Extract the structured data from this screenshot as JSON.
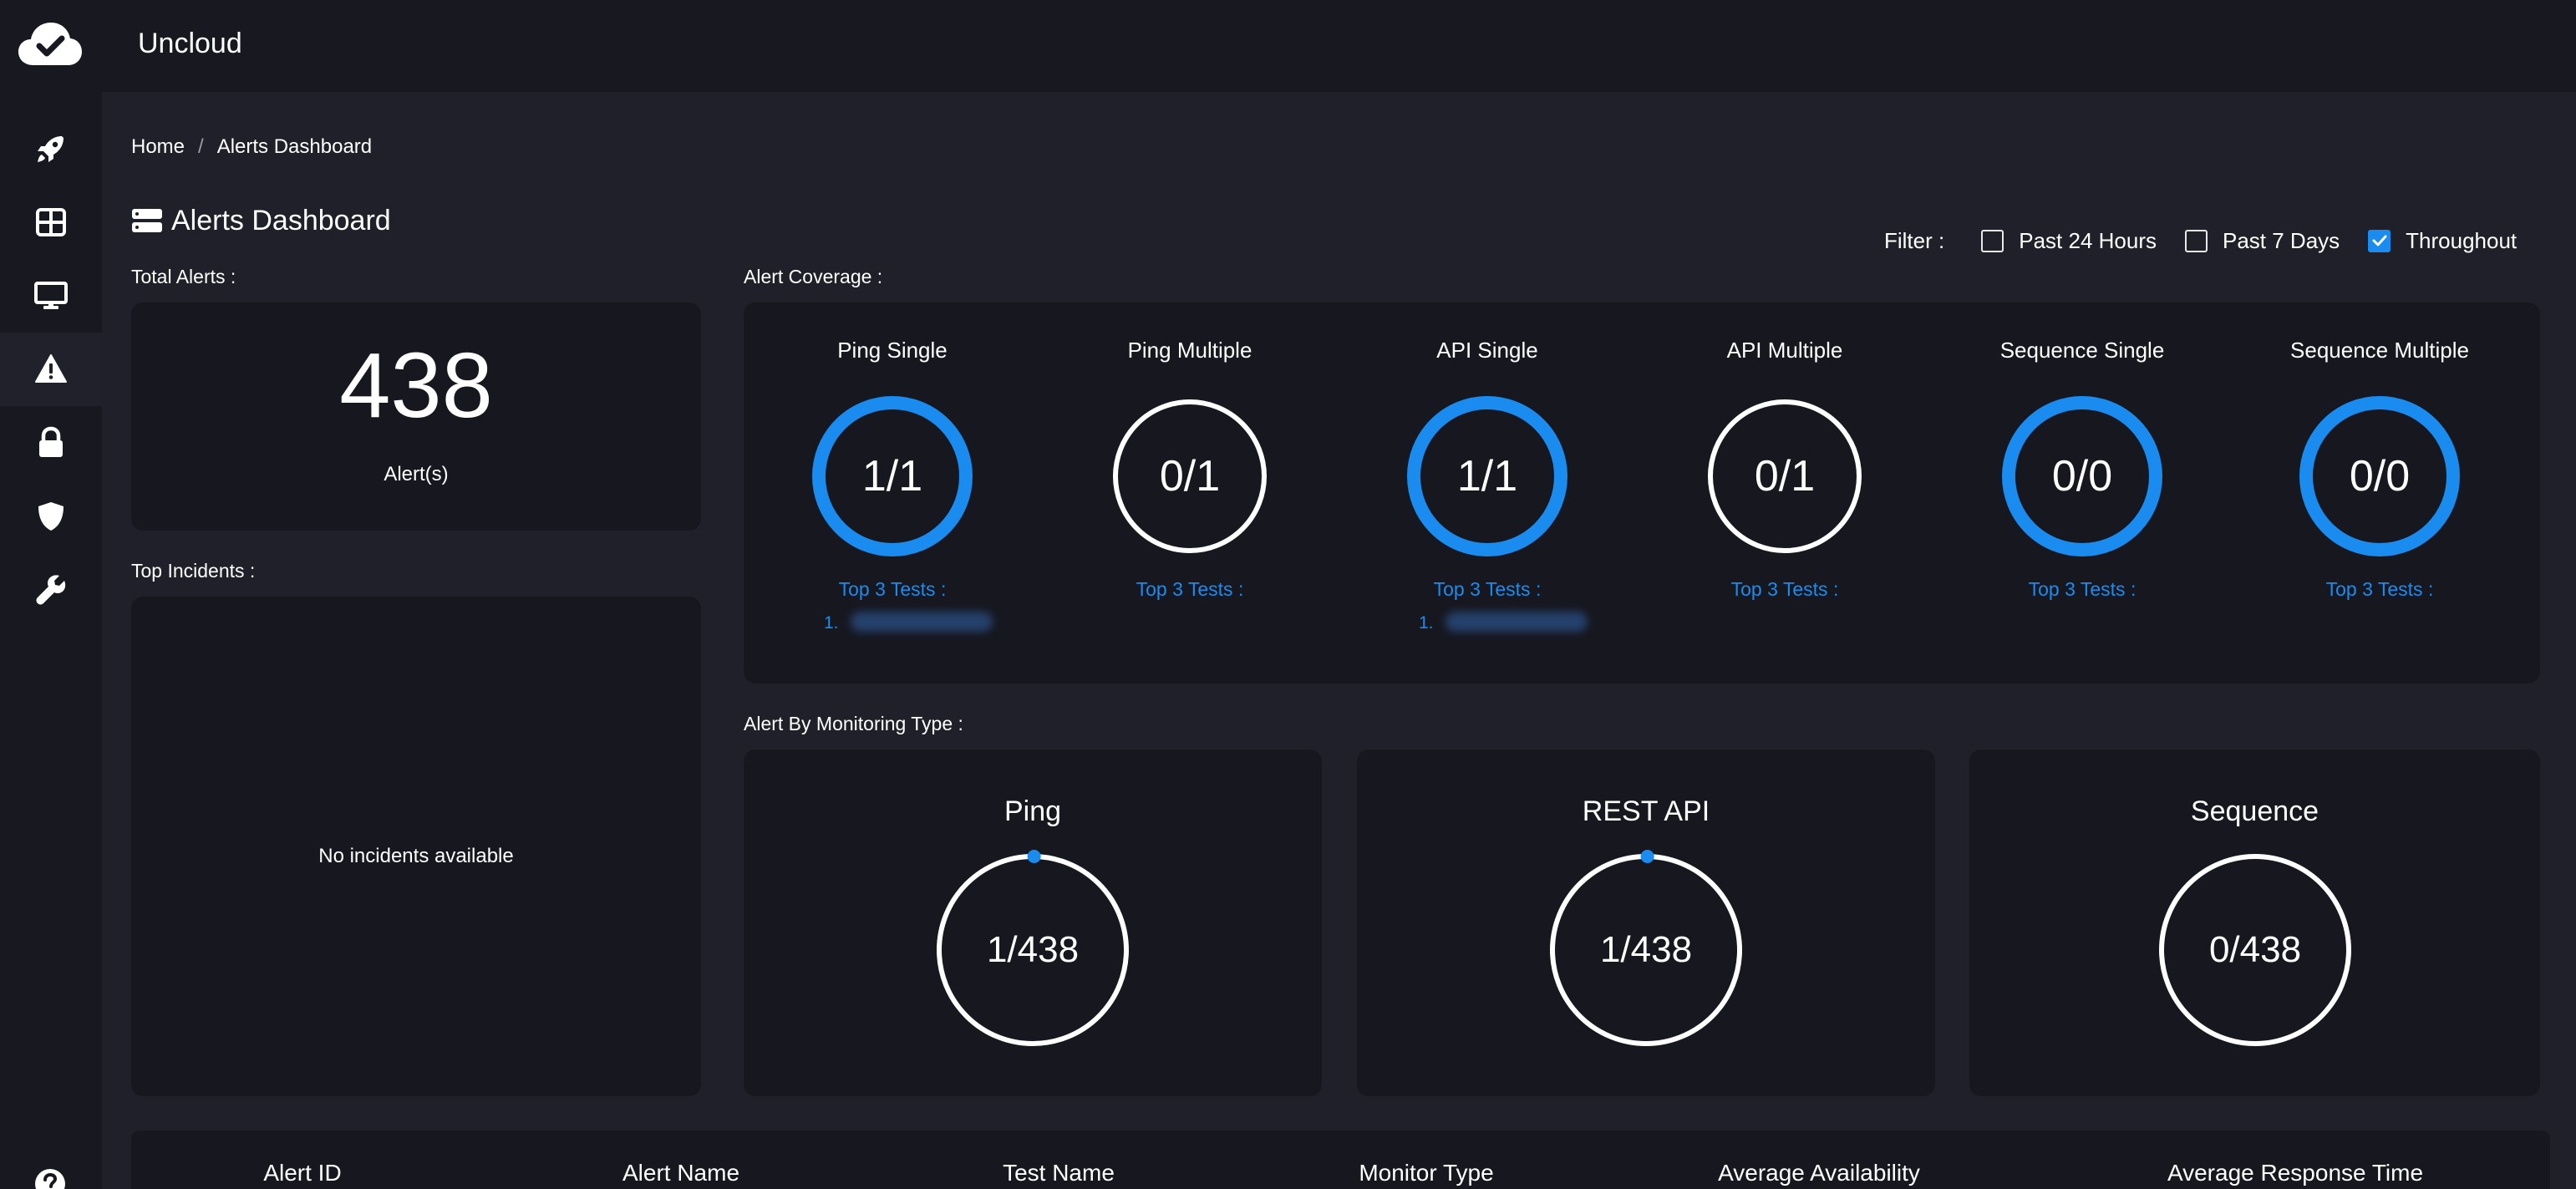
{
  "app": {
    "title": "Uncloud"
  },
  "sidebar": {
    "items": [
      {
        "name": "rocket-icon"
      },
      {
        "name": "grid-icon"
      },
      {
        "name": "monitor-icon"
      },
      {
        "name": "alert-triangle-icon",
        "active": true
      },
      {
        "name": "lock-icon"
      },
      {
        "name": "shield-icon"
      },
      {
        "name": "wrench-icon"
      }
    ],
    "help_icon": "help-circle-icon"
  },
  "breadcrumb": {
    "home": "Home",
    "separator": "/",
    "current": "Alerts Dashboard"
  },
  "page": {
    "title": "Alerts Dashboard"
  },
  "filter": {
    "label": "Filter :",
    "options": [
      {
        "label": "Past 24 Hours",
        "checked": false
      },
      {
        "label": "Past 7 Days",
        "checked": false
      },
      {
        "label": "Throughout",
        "checked": true
      }
    ]
  },
  "total_alerts": {
    "label": "Total Alerts :",
    "value": "438",
    "unit": "Alert(s)"
  },
  "top_incidents": {
    "label": "Top Incidents :",
    "empty_text": "No incidents available"
  },
  "alert_coverage": {
    "label": "Alert Coverage :",
    "items": [
      {
        "title": "Ping Single",
        "value": "1/1",
        "ring_color": "#1a8cf0",
        "top_label": "Top 3 Tests :",
        "tests": [
          "1."
        ]
      },
      {
        "title": "Ping Multiple",
        "value": "0/1",
        "ring_color": "#ffffff",
        "top_label": "Top 3 Tests :",
        "tests": []
      },
      {
        "title": "API Single",
        "value": "1/1",
        "ring_color": "#1a8cf0",
        "top_label": "Top 3 Tests :",
        "tests": [
          "1."
        ]
      },
      {
        "title": "API Multiple",
        "value": "0/1",
        "ring_color": "#ffffff",
        "top_label": "Top 3 Tests :",
        "tests": []
      },
      {
        "title": "Sequence Single",
        "value": "0/0",
        "ring_color": "#1a8cf0",
        "top_label": "Top 3 Tests :",
        "tests": []
      },
      {
        "title": "Sequence Multiple",
        "value": "0/0",
        "ring_color": "#1a8cf0",
        "top_label": "Top 3 Tests :",
        "tests": []
      }
    ]
  },
  "alert_by_type": {
    "label": "Alert By Monitoring Type :",
    "items": [
      {
        "title": "Ping",
        "value": "1/438",
        "count": 1,
        "total": 438
      },
      {
        "title": "REST API",
        "value": "1/438",
        "count": 1,
        "total": 438
      },
      {
        "title": "Sequence",
        "value": "0/438",
        "count": 0,
        "total": 438
      }
    ]
  },
  "table": {
    "columns": [
      "Alert ID",
      "Alert Name",
      "Test Name",
      "Monitor Type",
      "Average Availability",
      "Average Response Time"
    ]
  },
  "colors": {
    "accent": "#1a8cf0",
    "background": "#1f2029",
    "card": "#16171f",
    "topbar": "#181920"
  }
}
